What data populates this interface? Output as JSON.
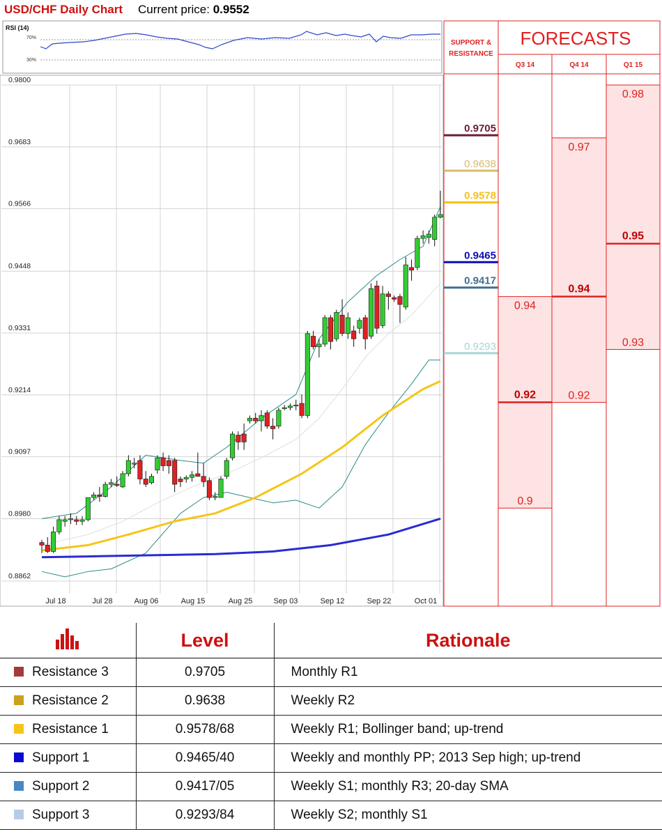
{
  "header": {
    "title": "USD/CHF Daily Chart",
    "price_label": "Current price:",
    "price_value": "0.9552"
  },
  "rsi": {
    "label": "RSI (14)",
    "levels": [
      "70%",
      "30%"
    ]
  },
  "chart_data": {
    "type": "candlestick",
    "ylim": [
      0.8862,
      0.98
    ],
    "yticks": [
      "0.9800",
      "0.9683",
      "0.9566",
      "0.9448",
      "0.9331",
      "0.9214",
      "0.9097",
      "0.8980",
      "0.8862"
    ],
    "xticks": [
      "Jul 18",
      "Jul 28",
      "Aug 06",
      "Aug 15",
      "Aug 25",
      "Sep 03",
      "Sep 12",
      "Sep 22",
      "Oct 01"
    ],
    "candles": [
      {
        "o": 0.8935,
        "h": 0.894,
        "l": 0.8915,
        "c": 0.893
      },
      {
        "o": 0.893,
        "h": 0.8945,
        "l": 0.8915,
        "c": 0.8918
      },
      {
        "o": 0.8918,
        "h": 0.8965,
        "l": 0.8915,
        "c": 0.8955
      },
      {
        "o": 0.8955,
        "h": 0.8985,
        "l": 0.895,
        "c": 0.8978
      },
      {
        "o": 0.8975,
        "h": 0.8985,
        "l": 0.8965,
        "c": 0.8978
      },
      {
        "o": 0.8978,
        "h": 0.899,
        "l": 0.897,
        "c": 0.898
      },
      {
        "o": 0.8978,
        "h": 0.8985,
        "l": 0.8968,
        "c": 0.8975
      },
      {
        "o": 0.8975,
        "h": 0.8985,
        "l": 0.8968,
        "c": 0.8978
      },
      {
        "o": 0.8978,
        "h": 0.9015,
        "l": 0.8975,
        "c": 0.902
      },
      {
        "o": 0.902,
        "h": 0.903,
        "l": 0.9015,
        "c": 0.9025
      },
      {
        "o": 0.9025,
        "h": 0.904,
        "l": 0.9012,
        "c": 0.9022
      },
      {
        "o": 0.9022,
        "h": 0.905,
        "l": 0.902,
        "c": 0.9045
      },
      {
        "o": 0.9045,
        "h": 0.9055,
        "l": 0.904,
        "c": 0.9048
      },
      {
        "o": 0.9045,
        "h": 0.906,
        "l": 0.904,
        "c": 0.9043
      },
      {
        "o": 0.904,
        "h": 0.907,
        "l": 0.9038,
        "c": 0.9065
      },
      {
        "o": 0.9065,
        "h": 0.91,
        "l": 0.906,
        "c": 0.909
      },
      {
        "o": 0.9085,
        "h": 0.9095,
        "l": 0.9075,
        "c": 0.9085
      },
      {
        "o": 0.909,
        "h": 0.91,
        "l": 0.9045,
        "c": 0.9055
      },
      {
        "o": 0.9055,
        "h": 0.907,
        "l": 0.904,
        "c": 0.9045
      },
      {
        "o": 0.9048,
        "h": 0.9065,
        "l": 0.9045,
        "c": 0.906
      },
      {
        "o": 0.9072,
        "h": 0.91,
        "l": 0.9065,
        "c": 0.9095
      },
      {
        "o": 0.9095,
        "h": 0.9105,
        "l": 0.907,
        "c": 0.908
      },
      {
        "o": 0.909,
        "h": 0.91,
        "l": 0.9065,
        "c": 0.908
      },
      {
        "o": 0.909,
        "h": 0.9095,
        "l": 0.903,
        "c": 0.9045
      },
      {
        "o": 0.9055,
        "h": 0.906,
        "l": 0.904,
        "c": 0.905
      },
      {
        "o": 0.9055,
        "h": 0.9062,
        "l": 0.9048,
        "c": 0.9058
      },
      {
        "o": 0.9058,
        "h": 0.907,
        "l": 0.905,
        "c": 0.9063
      },
      {
        "o": 0.9065,
        "h": 0.9105,
        "l": 0.906,
        "c": 0.906
      },
      {
        "o": 0.906,
        "h": 0.9085,
        "l": 0.904,
        "c": 0.905
      },
      {
        "o": 0.9052,
        "h": 0.9058,
        "l": 0.9015,
        "c": 0.902
      },
      {
        "o": 0.902,
        "h": 0.903,
        "l": 0.9015,
        "c": 0.9022
      },
      {
        "o": 0.902,
        "h": 0.906,
        "l": 0.902,
        "c": 0.9055
      },
      {
        "o": 0.906,
        "h": 0.9095,
        "l": 0.9055,
        "c": 0.909
      },
      {
        "o": 0.9095,
        "h": 0.9145,
        "l": 0.909,
        "c": 0.914
      },
      {
        "o": 0.9138,
        "h": 0.9145,
        "l": 0.911,
        "c": 0.9125
      },
      {
        "o": 0.914,
        "h": 0.916,
        "l": 0.911,
        "c": 0.9125
      },
      {
        "o": 0.9165,
        "h": 0.9175,
        "l": 0.916,
        "c": 0.917
      },
      {
        "o": 0.917,
        "h": 0.918,
        "l": 0.916,
        "c": 0.9165
      },
      {
        "o": 0.9165,
        "h": 0.9185,
        "l": 0.9145,
        "c": 0.9175
      },
      {
        "o": 0.918,
        "h": 0.9185,
        "l": 0.915,
        "c": 0.9155
      },
      {
        "o": 0.9155,
        "h": 0.917,
        "l": 0.913,
        "c": 0.915
      },
      {
        "o": 0.9155,
        "h": 0.919,
        "l": 0.915,
        "c": 0.9185
      },
      {
        "o": 0.9188,
        "h": 0.9195,
        "l": 0.9185,
        "c": 0.919
      },
      {
        "o": 0.919,
        "h": 0.9198,
        "l": 0.9185,
        "c": 0.9193
      },
      {
        "o": 0.9193,
        "h": 0.9205,
        "l": 0.9185,
        "c": 0.9195
      },
      {
        "o": 0.9198,
        "h": 0.9215,
        "l": 0.917,
        "c": 0.9175
      },
      {
        "o": 0.9175,
        "h": 0.9335,
        "l": 0.917,
        "c": 0.933
      },
      {
        "o": 0.9325,
        "h": 0.9335,
        "l": 0.93,
        "c": 0.9305
      },
      {
        "o": 0.9305,
        "h": 0.932,
        "l": 0.9285,
        "c": 0.931
      },
      {
        "o": 0.931,
        "h": 0.9365,
        "l": 0.9305,
        "c": 0.936
      },
      {
        "o": 0.936,
        "h": 0.9365,
        "l": 0.93,
        "c": 0.9315
      },
      {
        "o": 0.932,
        "h": 0.9375,
        "l": 0.9315,
        "c": 0.937
      },
      {
        "o": 0.9365,
        "h": 0.9395,
        "l": 0.9325,
        "c": 0.933
      },
      {
        "o": 0.933,
        "h": 0.937,
        "l": 0.932,
        "c": 0.936
      },
      {
        "o": 0.9335,
        "h": 0.9345,
        "l": 0.9305,
        "c": 0.932
      },
      {
        "o": 0.934,
        "h": 0.936,
        "l": 0.933,
        "c": 0.9355
      },
      {
        "o": 0.936,
        "h": 0.9365,
        "l": 0.93,
        "c": 0.932
      },
      {
        "o": 0.9325,
        "h": 0.9425,
        "l": 0.932,
        "c": 0.9415
      },
      {
        "o": 0.942,
        "h": 0.943,
        "l": 0.933,
        "c": 0.934
      },
      {
        "o": 0.9345,
        "h": 0.942,
        "l": 0.934,
        "c": 0.9405
      },
      {
        "o": 0.9405,
        "h": 0.941,
        "l": 0.9375,
        "c": 0.94
      },
      {
        "o": 0.9398,
        "h": 0.9402,
        "l": 0.939,
        "c": 0.9395
      },
      {
        "o": 0.94,
        "h": 0.9405,
        "l": 0.935,
        "c": 0.9385
      },
      {
        "o": 0.938,
        "h": 0.9475,
        "l": 0.9375,
        "c": 0.946
      },
      {
        "o": 0.9455,
        "h": 0.947,
        "l": 0.943,
        "c": 0.945
      },
      {
        "o": 0.9455,
        "h": 0.9515,
        "l": 0.945,
        "c": 0.951
      },
      {
        "o": 0.951,
        "h": 0.9525,
        "l": 0.95,
        "c": 0.9515
      },
      {
        "o": 0.9512,
        "h": 0.9525,
        "l": 0.95,
        "c": 0.9518
      },
      {
        "o": 0.9508,
        "h": 0.9555,
        "l": 0.9495,
        "c": 0.955
      },
      {
        "o": 0.955,
        "h": 0.96,
        "l": 0.9548,
        "c": 0.9555
      }
    ],
    "sma_fast": [
      [
        0,
        0.892
      ],
      [
        8,
        0.893
      ],
      [
        15,
        0.895
      ],
      [
        23,
        0.8975
      ],
      [
        30,
        0.899
      ],
      [
        37,
        0.902
      ],
      [
        45,
        0.9065
      ],
      [
        52,
        0.9115
      ],
      [
        59,
        0.9175
      ],
      [
        66,
        0.9225
      ],
      [
        69,
        0.924
      ]
    ],
    "sma_slow": [
      [
        0,
        0.8907
      ],
      [
        10,
        0.8909
      ],
      [
        20,
        0.8911
      ],
      [
        30,
        0.8913
      ],
      [
        40,
        0.8918
      ],
      [
        50,
        0.893
      ],
      [
        60,
        0.895
      ],
      [
        69,
        0.898
      ]
    ],
    "bb_upper": [
      [
        0,
        0.898
      ],
      [
        6,
        0.899
      ],
      [
        12,
        0.904
      ],
      [
        18,
        0.91
      ],
      [
        24,
        0.909
      ],
      [
        28,
        0.9085
      ],
      [
        32,
        0.9115
      ],
      [
        38,
        0.917
      ],
      [
        44,
        0.9215
      ],
      [
        48,
        0.932
      ],
      [
        53,
        0.939
      ],
      [
        58,
        0.944
      ],
      [
        62,
        0.947
      ],
      [
        66,
        0.9495
      ],
      [
        69,
        0.957
      ]
    ],
    "bb_lower": [
      [
        0,
        0.888
      ],
      [
        4,
        0.887
      ],
      [
        8,
        0.888
      ],
      [
        12,
        0.8885
      ],
      [
        18,
        0.8915
      ],
      [
        24,
        0.899
      ],
      [
        28,
        0.902
      ],
      [
        32,
        0.903
      ],
      [
        36,
        0.902
      ],
      [
        40,
        0.901
      ],
      [
        44,
        0.9015
      ],
      [
        48,
        0.9
      ],
      [
        52,
        0.904
      ],
      [
        56,
        0.912
      ],
      [
        60,
        0.918
      ],
      [
        64,
        0.9235
      ],
      [
        67,
        0.928
      ],
      [
        69,
        0.928
      ]
    ],
    "bb_mid": [
      [
        0,
        0.893
      ],
      [
        8,
        0.895
      ],
      [
        14,
        0.8975
      ],
      [
        20,
        0.901
      ],
      [
        26,
        0.904
      ],
      [
        32,
        0.9065
      ],
      [
        38,
        0.9095
      ],
      [
        44,
        0.913
      ],
      [
        48,
        0.917
      ],
      [
        52,
        0.9225
      ],
      [
        56,
        0.9285
      ],
      [
        60,
        0.933
      ],
      [
        64,
        0.9365
      ],
      [
        69,
        0.9425
      ]
    ]
  },
  "sr": {
    "title1": "SUPPORT &",
    "title2": "RESISTANCE",
    "levels": [
      {
        "label": "0.9705",
        "value": 0.9705,
        "color": "#6a1d3a",
        "bold": true
      },
      {
        "label": "0.9638",
        "value": 0.9638,
        "color": "#d8ba6a",
        "bold": false
      },
      {
        "label": "0.9578",
        "value": 0.9578,
        "color": "#f5c11a",
        "bold": true
      },
      {
        "label": "0.9465",
        "value": 0.9465,
        "color": "#0b0bb8",
        "bold": true
      },
      {
        "label": "0.9417",
        "value": 0.9417,
        "color": "#3f6f8f",
        "bold": true
      },
      {
        "label": "0.9293",
        "value": 0.9293,
        "color": "#a8d4d4",
        "bold": false
      }
    ]
  },
  "forecasts": {
    "title": "FORECASTS",
    "columns": [
      {
        "name": "Q3 14",
        "mid": "0.92",
        "mid_val": 0.92,
        "top": "0.94",
        "top_val": 0.94,
        "bottom": "0.9",
        "bottom_val": 0.9
      },
      {
        "name": "Q4 14",
        "mid": "0.94",
        "mid_val": 0.94,
        "top": "0.97",
        "top_val": 0.97,
        "bottom": "0.92",
        "bottom_val": 0.92
      },
      {
        "name": "Q1 15",
        "mid": "0.95",
        "mid_val": 0.95,
        "top": "0.98",
        "top_val": 0.98,
        "bottom": "0.93",
        "bottom_val": 0.93
      }
    ]
  },
  "table": {
    "headers": {
      "level": "Level",
      "rationale": "Rationale"
    },
    "rows": [
      {
        "name": "Resistance 3",
        "level": "0.9705",
        "rationale": "Monthly R1",
        "color": "#a33b3b"
      },
      {
        "name": "Resistance 2",
        "level": "0.9638",
        "rationale": "Weekly R2",
        "color": "#c9a020"
      },
      {
        "name": "Resistance 1",
        "level": "0.9578/68",
        "rationale": "Weekly R1; Bollinger band; up-trend",
        "color": "#f5c518"
      },
      {
        "name": "Support 1",
        "level": "0.9465/40",
        "rationale": "Weekly and monthly PP; 2013 Sep high; up-trend",
        "color": "#0a0ad2"
      },
      {
        "name": "Support 2",
        "level": "0.9417/05",
        "rationale": "Weekly S1; monthly R3; 20-day SMA",
        "color": "#4a86c4"
      },
      {
        "name": "Support 3",
        "level": "0.9293/84",
        "rationale": "Weekly S2; monthly S1",
        "color": "#b6cbe6"
      }
    ]
  }
}
